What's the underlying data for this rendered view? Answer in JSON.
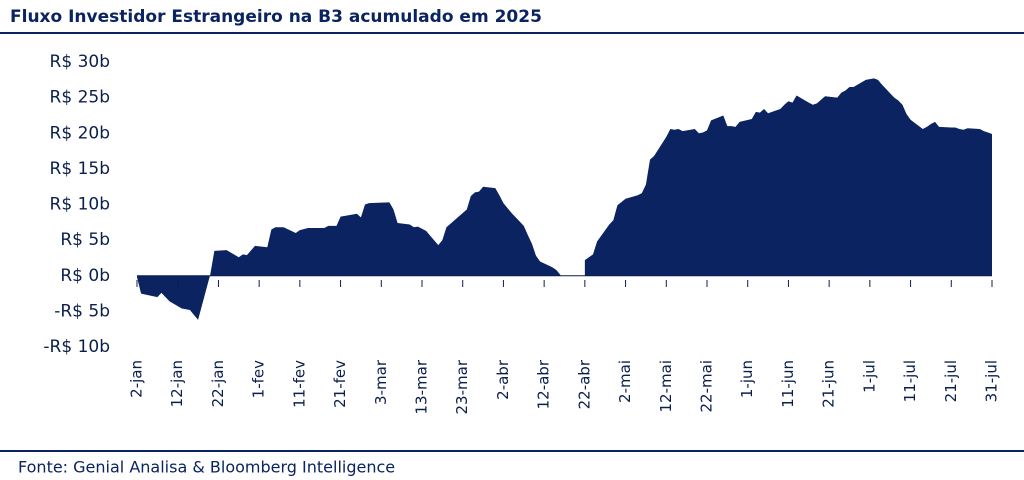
{
  "chart_data": {
    "type": "area",
    "title": "Fluxo Investidor Estrangeiro na B3 acumulado em 2025",
    "source": "Fonte: Genial Analisa & Bloomberg Intelligence",
    "color": "#0b2360",
    "x": [
      "2-jan",
      "3-jan",
      "7-jan",
      "8-jan",
      "10-jan",
      "13-jan",
      "15-jan",
      "16-jan",
      "17-jan",
      "20-jan",
      "21-jan",
      "24-jan",
      "27-jan",
      "28-jan",
      "29-jan",
      "31-jan",
      "3-fev",
      "4-fev",
      "5-fev",
      "7-fev",
      "10-fev",
      "11-fev",
      "13-fev",
      "17-fev",
      "18-fev",
      "20-fev",
      "21-fev",
      "24-fev",
      "25-fev",
      "26-fev",
      "27-fev",
      "28-fev",
      "5-mar",
      "6-mar",
      "7-mar",
      "10-mar",
      "11-mar",
      "12-mar",
      "13-mar",
      "14-mar",
      "17-mar",
      "18-mar",
      "19-mar",
      "20-mar",
      "21-mar",
      "24-mar",
      "25-mar",
      "26-mar",
      "27-mar",
      "28-mar",
      "31-mar",
      "1-abr",
      "2-abr",
      "3-abr",
      "4-abr",
      "7-abr",
      "8-abr",
      "9-abr",
      "10-abr",
      "11-abr",
      "14-abr",
      "15-abr",
      "16-abr",
      "17-abr",
      "22-abr",
      "23-abr",
      "24-abr",
      "25-abr",
      "28-abr",
      "29-abr",
      "30-abr",
      "2-mai",
      "5-mai",
      "6-mai",
      "7-mai",
      "8-mai",
      "9-mai",
      "12-mai",
      "13-mai",
      "14-mai",
      "15-mai",
      "16-mai",
      "19-mai",
      "20-mai",
      "21-mai",
      "22-mai",
      "23-mai",
      "26-mai",
      "27-mai",
      "28-mai",
      "29-mai",
      "30-mai",
      "2-jun",
      "3-jun",
      "4-jun",
      "5-jun",
      "6-jun",
      "9-jun",
      "10-jun",
      "11-jun",
      "12-jun",
      "13-jun",
      "16-jun",
      "17-jun",
      "18-jun",
      "20-jun",
      "23-jun",
      "24-jun",
      "25-jun",
      "26-jun",
      "27-jun",
      "30-jun",
      "1-jul",
      "2-jul",
      "3-jul",
      "4-jul",
      "7-jul",
      "8-jul",
      "9-jul",
      "10-jul",
      "11-jul",
      "14-jul",
      "15-jul",
      "16-jul",
      "17-jul",
      "18-jul",
      "21-jul",
      "22-jul",
      "23-jul",
      "24-jul",
      "25-jul",
      "28-jul",
      "29-jul",
      "30-jul",
      "31-jul"
    ],
    "values": [
      -0.2,
      -2.5,
      -3.0,
      -2.4,
      -3.6,
      -4.6,
      -4.8,
      -5.5,
      -6.2,
      0.2,
      3.5,
      3.6,
      2.6,
      3.0,
      2.9,
      4.2,
      4.0,
      6.5,
      6.8,
      6.8,
      6.0,
      6.4,
      6.7,
      6.7,
      7.0,
      7.0,
      8.3,
      8.6,
      8.7,
      8.2,
      10.0,
      10.2,
      10.3,
      9.3,
      7.4,
      7.2,
      6.8,
      6.9,
      6.6,
      6.3,
      4.3,
      5.0,
      6.8,
      7.3,
      7.8,
      9.3,
      11.2,
      11.7,
      11.8,
      12.5,
      12.3,
      11.3,
      10.2,
      9.5,
      8.8,
      7.0,
      5.7,
      4.5,
      2.8,
      2.0,
      1.2,
      0.8,
      0.1,
      null,
      2.2,
      2.6,
      3.0,
      4.8,
      7.2,
      7.8,
      9.9,
      10.8,
      11.3,
      11.6,
      12.8,
      16.3,
      16.8,
      19.5,
      20.6,
      20.5,
      20.6,
      20.3,
      20.6,
      20.0,
      20.1,
      20.4,
      21.8,
      22.5,
      21.0,
      21.0,
      20.9,
      21.6,
      22.0,
      23.0,
      22.9,
      23.4,
      22.8,
      23.4,
      24.0,
      24.5,
      24.3,
      25.3,
      24.3,
      24.0,
      24.2,
      25.2,
      25.0,
      25.7,
      26.0,
      26.5,
      26.5,
      27.5,
      27.6,
      27.7,
      27.5,
      26.8,
      25.0,
      24.6,
      24.0,
      22.7,
      21.9,
      20.6,
      20.9,
      21.3,
      21.6,
      20.9,
      20.8,
      20.8,
      20.6,
      20.5,
      20.7,
      20.6,
      20.3,
      20.1,
      19.9
    ],
    "xticks": [
      "2-jan",
      "12-jan",
      "22-jan",
      "1-fev",
      "11-fev",
      "21-fev",
      "3-mar",
      "13-mar",
      "23-mar",
      "2-abr",
      "12-abr",
      "22-abr",
      "2-mai",
      "12-mai",
      "22-mai",
      "1-jun",
      "11-jun",
      "21-jun",
      "1-jul",
      "11-jul",
      "21-jul",
      "31-jul"
    ],
    "ylim": [
      -10,
      30
    ],
    "yticks": [
      {
        "value": -10,
        "label": "-R$ 10b"
      },
      {
        "value": -5,
        "label": "-R$ 5b"
      },
      {
        "value": 0,
        "label": "R$ 0b"
      },
      {
        "value": 5,
        "label": "R$ 5b"
      },
      {
        "value": 10,
        "label": "R$ 10b"
      },
      {
        "value": 15,
        "label": "R$ 15b"
      },
      {
        "value": 20,
        "label": "R$ 20b"
      },
      {
        "value": 25,
        "label": "R$ 25b"
      },
      {
        "value": 30,
        "label": "R$ 30b"
      }
    ]
  }
}
